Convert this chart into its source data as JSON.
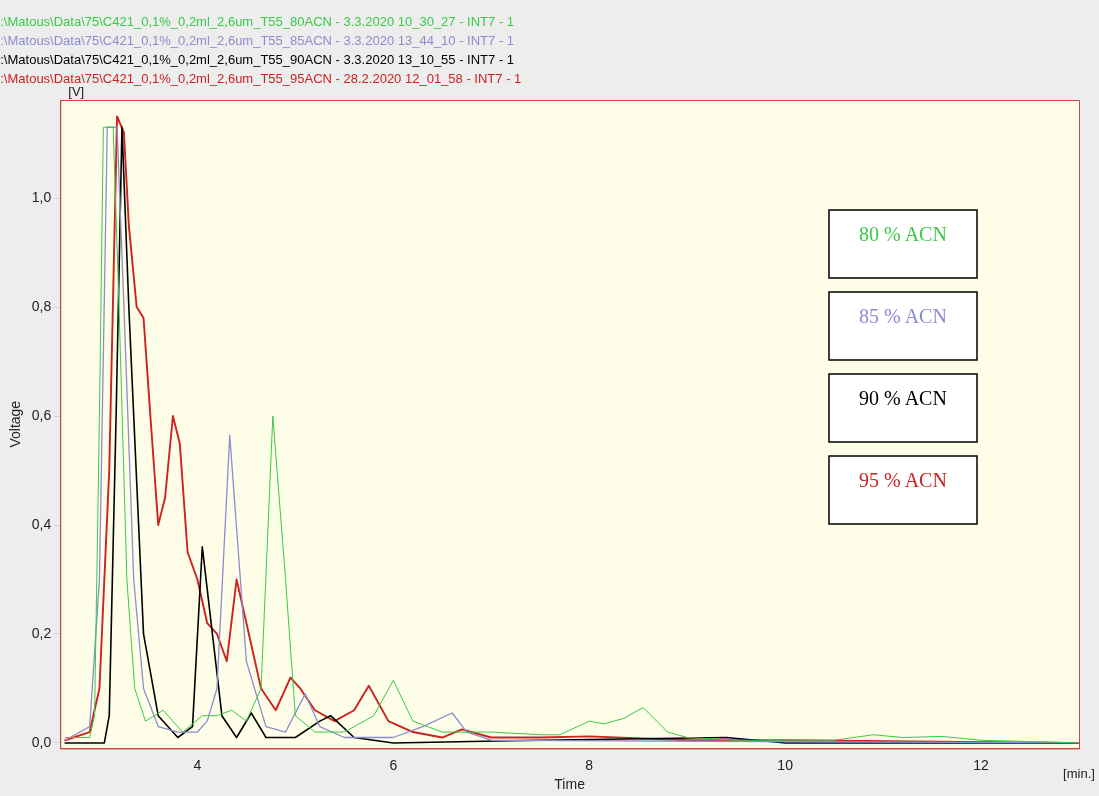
{
  "chart_data": {
    "type": "line",
    "xlabel": "Time",
    "ylabel": "Voltage",
    "legend": "right",
    "marker": "none",
    "line_style": "solid",
    "grid": false,
    "annotations": [
      ":\\Matous\\Data\\75\\C421_0,1%_0,2ml_2,6um_T55_80ACN - 3.3.2020 10_30_27 - INT7 - 1",
      ":\\Matous\\Data\\75\\C421_0,1%_0,2ml_2,6um_T55_85ACN - 3.3.2020 13_44_10 - INT7 - 1",
      ":\\Matous\\Data\\75\\C421_0,1%_0,2ml_2,6um_T55_90ACN - 3.3.2020 13_10_55 - INT7 - 1",
      ":\\Matous\\Data\\75\\C421_0,1%_0,2ml_2,6um_T55_95ACN - 28.2.2020 12_01_58 - INT7 - 1",
      "[V]",
      "[min.]"
    ],
    "xlim": [
      2.6,
      13
    ],
    "xticks": [
      4,
      6,
      8,
      10,
      12
    ],
    "ylim": [
      -0.01,
      1.18
    ],
    "yticks": [
      {
        "value": 0,
        "label": "0,0"
      },
      {
        "value": 0.2,
        "label": "0,2"
      },
      {
        "value": 0.4,
        "label": "0,4"
      },
      {
        "value": 0.6,
        "label": "0,6"
      },
      {
        "value": 0.8,
        "label": "0,8"
      },
      {
        "value": 1,
        "label": "1,0"
      }
    ],
    "series": [
      {
        "name": "80 % ACN",
        "color": "#3cc84a",
        "x": [
          2.65,
          2.9,
          2.95,
          3.0,
          3.04,
          3.14,
          3.2,
          3.28,
          3.36,
          3.47,
          3.65,
          3.85,
          4.05,
          4.2,
          4.35,
          4.5,
          4.65,
          4.77,
          4.9,
          5.0,
          5.2,
          5.5,
          5.8,
          6.0,
          6.2,
          6.5,
          7.0,
          7.5,
          7.7,
          8.0,
          8.15,
          8.35,
          8.55,
          8.8,
          9.0,
          9.5,
          10.5,
          10.9,
          11.2,
          11.6,
          12.0,
          13.0
        ],
        "values": [
          0.01,
          0.01,
          0.05,
          0.6,
          1.13,
          1.13,
          0.8,
          0.3,
          0.1,
          0.04,
          0.06,
          0.02,
          0.05,
          0.05,
          0.06,
          0.04,
          0.1,
          0.6,
          0.3,
          0.05,
          0.02,
          0.02,
          0.05,
          0.115,
          0.04,
          0.02,
          0.02,
          0.015,
          0.015,
          0.04,
          0.035,
          0.045,
          0.065,
          0.02,
          0.01,
          0.005,
          0.005,
          0.015,
          0.01,
          0.012,
          0.005,
          0.0
        ]
      },
      {
        "name": "85 % ACN",
        "color": "#8c8ccf",
        "x": [
          2.65,
          2.9,
          3.0,
          3.08,
          3.18,
          3.25,
          3.35,
          3.45,
          3.6,
          3.8,
          4.0,
          4.1,
          4.2,
          4.33,
          4.5,
          4.7,
          4.9,
          5.1,
          5.25,
          5.5,
          6.0,
          6.3,
          6.6,
          6.75,
          7.0,
          13.0
        ],
        "values": [
          0.005,
          0.03,
          0.3,
          1.13,
          1.13,
          0.8,
          0.3,
          0.1,
          0.03,
          0.02,
          0.02,
          0.04,
          0.1,
          0.565,
          0.15,
          0.03,
          0.02,
          0.09,
          0.03,
          0.01,
          0.01,
          0.03,
          0.055,
          0.02,
          0.005,
          0.0
        ]
      },
      {
        "name": "90 % ACN",
        "color": "#000000",
        "x": [
          2.65,
          3.05,
          3.1,
          3.17,
          3.23,
          3.3,
          3.45,
          3.6,
          3.8,
          3.95,
          4.05,
          4.25,
          4.4,
          4.55,
          4.7,
          5.0,
          5.25,
          5.36,
          5.6,
          6.0,
          7.5,
          9.4,
          10.0,
          13.0
        ],
        "values": [
          0.0,
          0.0,
          0.05,
          0.6,
          1.13,
          0.8,
          0.2,
          0.05,
          0.01,
          0.03,
          0.36,
          0.05,
          0.01,
          0.055,
          0.01,
          0.01,
          0.04,
          0.05,
          0.01,
          0.0,
          0.005,
          0.01,
          0.0,
          0.0
        ]
      },
      {
        "name": "95 % ACN",
        "color": "#cc2222",
        "x": [
          2.65,
          2.9,
          3.0,
          3.1,
          3.18,
          3.25,
          3.3,
          3.38,
          3.45,
          3.52,
          3.6,
          3.67,
          3.75,
          3.82,
          3.9,
          4.0,
          4.1,
          4.2,
          4.3,
          4.4,
          4.5,
          4.65,
          4.8,
          4.95,
          5.05,
          5.2,
          5.4,
          5.6,
          5.75,
          5.95,
          6.2,
          6.5,
          6.7,
          7.0,
          7.5,
          8.0,
          9.0,
          10.0,
          13.0
        ],
        "values": [
          0.005,
          0.02,
          0.1,
          0.5,
          1.15,
          1.12,
          0.95,
          0.8,
          0.78,
          0.6,
          0.4,
          0.45,
          0.6,
          0.55,
          0.35,
          0.3,
          0.22,
          0.2,
          0.15,
          0.3,
          0.22,
          0.1,
          0.06,
          0.12,
          0.1,
          0.06,
          0.04,
          0.06,
          0.105,
          0.04,
          0.02,
          0.01,
          0.025,
          0.01,
          0.01,
          0.012,
          0.005,
          0.005,
          0.0
        ]
      }
    ]
  }
}
